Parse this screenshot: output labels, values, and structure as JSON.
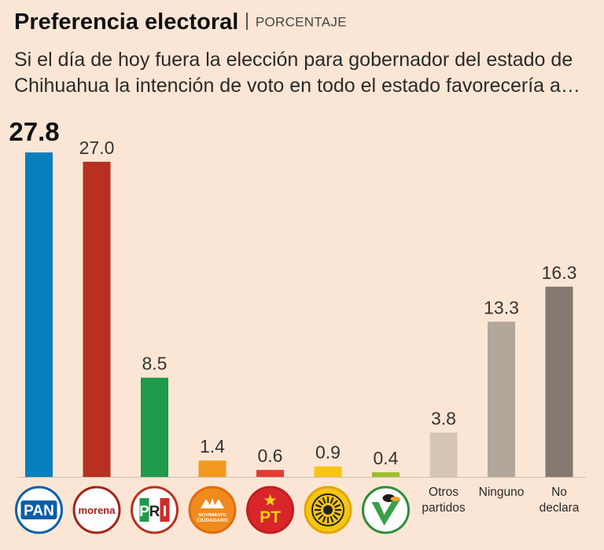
{
  "header": {
    "title": "Preferencia electoral",
    "subtitle": "PORCENTAJE",
    "question": "Si el día de hoy fuera la elección para gobernador del estado de Chihuahua la intención de voto en todo el estado favorecería a…"
  },
  "chart_data": {
    "type": "bar",
    "title": "Preferencia electoral",
    "subtitle": "PORCENTAJE",
    "categories": [
      "PAN",
      "morena",
      "PRI",
      "MOVIMIENTO CIUDADANO",
      "PT",
      "PRD",
      "PVEM",
      "Otros partidos",
      "Ninguno",
      "No declara"
    ],
    "values": [
      27.8,
      27.0,
      8.5,
      1.4,
      0.6,
      0.9,
      0.4,
      3.8,
      13.3,
      16.3
    ],
    "value_labels": [
      "27.8",
      "27.0",
      "8.5",
      "1.4",
      "0.6",
      "0.9",
      "0.4",
      "3.8",
      "13.3",
      "16.3"
    ],
    "colors": [
      "#0a7fbd",
      "#b8301f",
      "#1e9a4b",
      "#f39a1e",
      "#e63b34",
      "#f7c514",
      "#9cbf2a",
      "#d5c6b6",
      "#b3a69b",
      "#857a71"
    ],
    "category_label_lines": [
      [],
      [],
      [],
      [],
      [],
      [],
      [],
      [
        "Otros",
        "partidos"
      ],
      [
        "Ninguno"
      ],
      [
        "No",
        "declara"
      ]
    ],
    "logo_text": {
      "PAN": "PAN",
      "morena": "morena",
      "PRI": [
        "P",
        "R",
        "I"
      ],
      "MC": [
        "MOVIMIENTO",
        "CIUDADANO"
      ],
      "PT": "PT"
    },
    "highlight_index": 0,
    "ylim": [
      0,
      30
    ],
    "grid": false,
    "legend": "none"
  }
}
